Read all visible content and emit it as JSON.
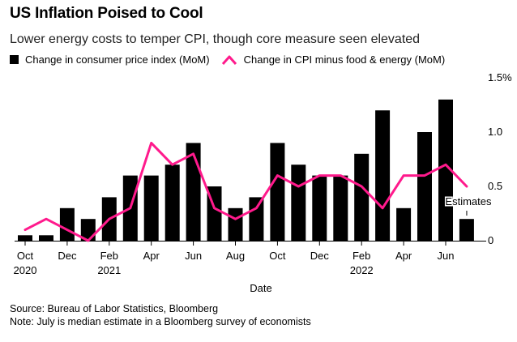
{
  "header": {
    "title": "US Inflation Poised to Cool",
    "subtitle": "Lower energy costs to temper CPI, though core measure seen elevated"
  },
  "legend": {
    "bar_label": "Change in consumer price index (MoM)",
    "line_label": "Change in CPI minus food & energy (MoM)"
  },
  "colors": {
    "bar": "#000000",
    "line": "#ff1a8c",
    "axis": "#000000"
  },
  "footer": {
    "source": "Source: Bureau of Labor Statistics, Bloomberg",
    "note": "Note: July is median estimate in a Bloomberg survey of economists"
  },
  "chart_data": {
    "type": "bar",
    "x": [
      "2020-10",
      "2020-11",
      "2020-12",
      "2021-01",
      "2021-02",
      "2021-03",
      "2021-04",
      "2021-05",
      "2021-06",
      "2021-07",
      "2021-08",
      "2021-09",
      "2021-10",
      "2021-11",
      "2021-12",
      "2022-01",
      "2022-02",
      "2022-03",
      "2022-04",
      "2022-05",
      "2022-06",
      "2022-07"
    ],
    "series": [
      {
        "name": "Change in consumer price index (MoM)",
        "kind": "bar",
        "values": [
          0.05,
          0.05,
          0.3,
          0.2,
          0.4,
          0.6,
          0.6,
          0.7,
          0.9,
          0.5,
          0.3,
          0.4,
          0.9,
          0.7,
          0.6,
          0.6,
          0.8,
          1.2,
          0.3,
          1.0,
          1.3,
          0.2
        ]
      },
      {
        "name": "Change in CPI minus food & energy (MoM)",
        "kind": "line",
        "values": [
          0.1,
          0.2,
          0.1,
          0.0,
          0.2,
          0.3,
          0.9,
          0.7,
          0.8,
          0.3,
          0.2,
          0.3,
          0.6,
          0.5,
          0.6,
          0.6,
          0.5,
          0.3,
          0.6,
          0.6,
          0.7,
          0.5
        ]
      }
    ],
    "x_tick_labels": [
      {
        "index": 0,
        "line1": "Oct",
        "line2": "2020"
      },
      {
        "index": 2,
        "line1": "Dec",
        "line2": ""
      },
      {
        "index": 4,
        "line1": "Feb",
        "line2": "2021"
      },
      {
        "index": 6,
        "line1": "Apr",
        "line2": ""
      },
      {
        "index": 8,
        "line1": "Jun",
        "line2": ""
      },
      {
        "index": 10,
        "line1": "Aug",
        "line2": ""
      },
      {
        "index": 12,
        "line1": "Oct",
        "line2": ""
      },
      {
        "index": 14,
        "line1": "Dec",
        "line2": ""
      },
      {
        "index": 16,
        "line1": "Feb",
        "line2": "2022"
      },
      {
        "index": 18,
        "line1": "Apr",
        "line2": ""
      },
      {
        "index": 20,
        "line1": "Jun",
        "line2": ""
      }
    ],
    "y_ticks": [
      {
        "value": 0,
        "label": "0"
      },
      {
        "value": 0.5,
        "label": "0.5"
      },
      {
        "value": 1.0,
        "label": "1.0"
      },
      {
        "value": 1.5,
        "label": "1.5%"
      }
    ],
    "ylim": [
      -0.05,
      1.5
    ],
    "xlabel": "Date",
    "annotation": {
      "index": 21,
      "text": "Estimates"
    },
    "grid": false,
    "y_axis_side": "right",
    "legend_position": "top-left"
  }
}
